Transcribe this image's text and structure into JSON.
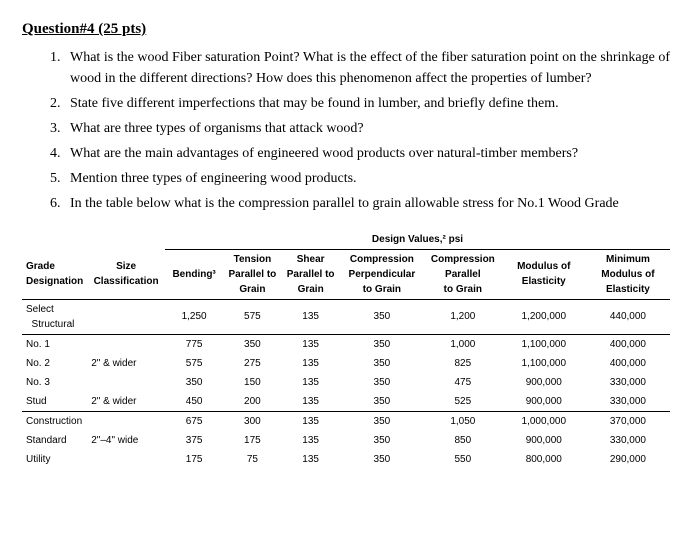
{
  "heading": "Question#4 (25 pts)",
  "questions": [
    "What is the wood Fiber saturation Point? What is the effect of the fiber saturation point on the shrinkage of wood in the different directions? How does this phenomenon affect the properties of lumber?",
    "State five different imperfections that may be found in lumber, and briefly define them.",
    " What are three types of organisms that attack wood?",
    "What are the main advantages of engineered wood products over natural-timber members?",
    "Mention three types of engineering wood products.",
    "In the table below what is the compression parallel to grain allowable stress for No.1 Wood Grade"
  ],
  "table": {
    "super_header": "Design Values,² psi",
    "headers": {
      "grade": "Grade Designation",
      "size": "Size Classification",
      "bending": "Bending³",
      "tension": "Tension Parallel to Grain",
      "shear": "Shear Parallel to Grain",
      "comp_perp": "Compression Perpendicular to Grain",
      "comp_par": "Compression Parallel to Grain",
      "moe": "Modulus of Elasticity",
      "min_moe": "Minimum Modulus of Elasticity"
    },
    "rows": [
      {
        "g": "Select Structural",
        "s": "",
        "b": "1,250",
        "t": "575",
        "sh": "135",
        "cp": "350",
        "cg": "1,200",
        "me": "1,200,000",
        "mme": "440,000",
        "top": true,
        "bot": true
      },
      {
        "g": "No. 1",
        "s": "",
        "b": "775",
        "t": "350",
        "sh": "135",
        "cp": "350",
        "cg": "1,000",
        "me": "1,100,000",
        "mme": "400,000",
        "top": false,
        "bot": false
      },
      {
        "g": "No. 2",
        "s": "2\" & wider",
        "b": "575",
        "t": "275",
        "sh": "135",
        "cp": "350",
        "cg": "825",
        "me": "1,100,000",
        "mme": "400,000",
        "top": false,
        "bot": false
      },
      {
        "g": "No. 3",
        "s": "",
        "b": "350",
        "t": "150",
        "sh": "135",
        "cp": "350",
        "cg": "475",
        "me": "900,000",
        "mme": "330,000",
        "top": false,
        "bot": false
      },
      {
        "g": "Stud",
        "s": "2\" & wider",
        "b": "450",
        "t": "200",
        "sh": "135",
        "cp": "350",
        "cg": "525",
        "me": "900,000",
        "mme": "330,000",
        "top": false,
        "bot": true
      },
      {
        "g": "Construction",
        "s": "",
        "b": "675",
        "t": "300",
        "sh": "135",
        "cp": "350",
        "cg": "1,050",
        "me": "1,000,000",
        "mme": "370,000",
        "top": false,
        "bot": false
      },
      {
        "g": "Standard",
        "s": "2\"–4\" wide",
        "b": "375",
        "t": "175",
        "sh": "135",
        "cp": "350",
        "cg": "850",
        "me": "900,000",
        "mme": "330,000",
        "top": false,
        "bot": false
      },
      {
        "g": "Utility",
        "s": "",
        "b": "175",
        "t": "75",
        "sh": "135",
        "cp": "350",
        "cg": "550",
        "me": "800,000",
        "mme": "290,000",
        "top": false,
        "bot": false
      }
    ]
  }
}
